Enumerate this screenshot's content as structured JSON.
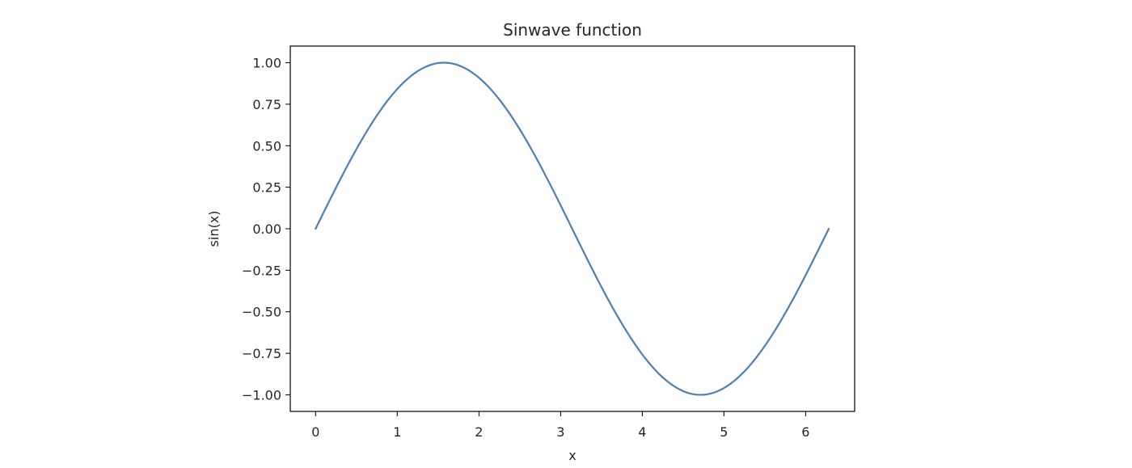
{
  "chart_data": {
    "type": "line",
    "title": "Sinwave function",
    "xlabel": "x",
    "ylabel": "sin(x)",
    "xlim": [
      -0.31,
      6.6
    ],
    "ylim": [
      -1.1,
      1.1
    ],
    "x_ticks": [
      0,
      1,
      2,
      3,
      4,
      5,
      6
    ],
    "x_tick_labels": [
      "0",
      "1",
      "2",
      "3",
      "4",
      "5",
      "6"
    ],
    "y_ticks": [
      1.0,
      0.75,
      0.5,
      0.25,
      0.0,
      -0.25,
      -0.5,
      -0.75,
      -1.0
    ],
    "y_tick_labels": [
      "1.00",
      "0.75",
      "0.50",
      "0.25",
      "0.00",
      "−0.25",
      "−0.50",
      "−0.75",
      "−1.00"
    ],
    "grid": false,
    "line_color": "#4c7fb2",
    "series": [
      {
        "x": [
          0,
          0.3142,
          0.6283,
          0.9425,
          1.2566,
          1.5708,
          1.885,
          2.1991,
          2.5133,
          2.8274,
          3.1416,
          3.4558,
          3.7699,
          4.0841,
          4.3982,
          4.7124,
          5.0265,
          5.3407,
          5.6549,
          5.969,
          6.2832
        ],
        "y": [
          0,
          0.309,
          0.5878,
          0.809,
          0.9511,
          1.0,
          0.9511,
          0.809,
          0.5878,
          0.309,
          0,
          -0.309,
          -0.5878,
          -0.809,
          -0.9511,
          -1.0,
          -0.9511,
          -0.809,
          -0.5878,
          -0.309,
          0
        ]
      }
    ]
  }
}
